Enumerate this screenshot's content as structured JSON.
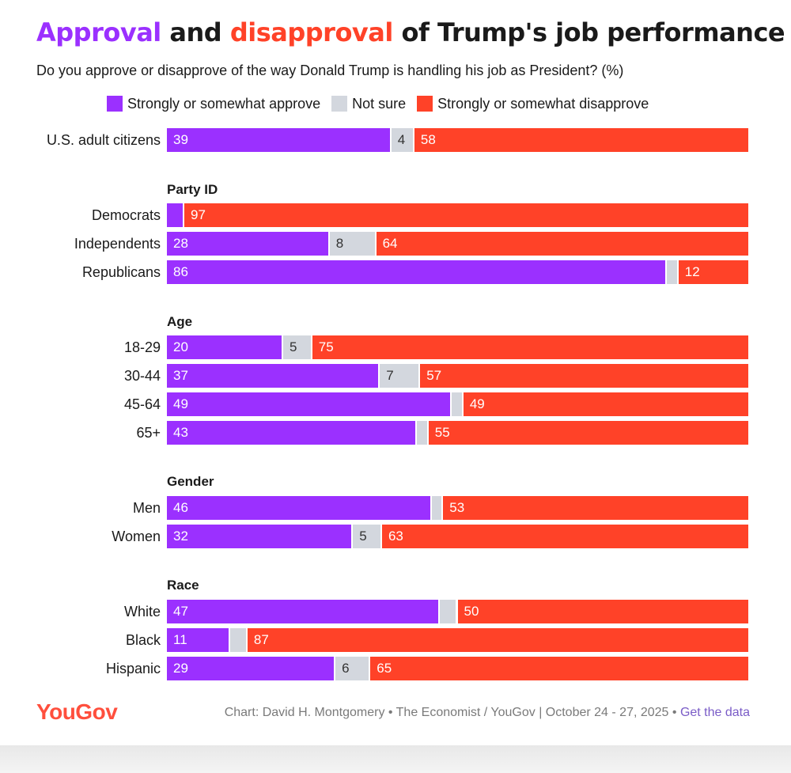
{
  "title": {
    "approval": "Approval",
    "and": " and ",
    "disapproval": "disapproval",
    "rest": " of Trump's job performance"
  },
  "subtitle": "Do you approve or disapprove of the way Donald Trump is handling his job as President? (%)",
  "colors": {
    "approve": "#9b30ff",
    "notsure": "#d3d7de",
    "disapprove": "#ff4228",
    "title_approve": "#9b30ff",
    "title_disapprove": "#ff4228",
    "logo": "#ff4f3d"
  },
  "legend": {
    "approve": "Strongly or somewhat approve",
    "notsure": "Not sure",
    "disapprove": "Strongly or somewhat disapprove"
  },
  "chart_data": {
    "type": "bar",
    "orientation": "horizontal",
    "stacked": true,
    "unit": "%",
    "series_names": [
      "Strongly or somewhat approve",
      "Not sure",
      "Strongly or somewhat disapprove"
    ],
    "groups": [
      {
        "name": "",
        "rows": [
          {
            "label": "U.S. adult citizens",
            "approve": 39,
            "notsure": 4,
            "disapprove": 58
          }
        ]
      },
      {
        "name": "Party ID",
        "rows": [
          {
            "label": "Democrats",
            "approve": 3,
            "notsure": 0,
            "disapprove": 97,
            "show_approve_label": false
          },
          {
            "label": "Independents",
            "approve": 28,
            "notsure": 8,
            "disapprove": 64
          },
          {
            "label": "Republicans",
            "approve": 86,
            "notsure": 2,
            "disapprove": 12,
            "show_notsure_label": false
          }
        ]
      },
      {
        "name": "Age",
        "rows": [
          {
            "label": "18-29",
            "approve": 20,
            "notsure": 5,
            "disapprove": 75
          },
          {
            "label": "30-44",
            "approve": 37,
            "notsure": 7,
            "disapprove": 57
          },
          {
            "label": "45-64",
            "approve": 49,
            "notsure": 2,
            "disapprove": 49,
            "show_notsure_label": false
          },
          {
            "label": "65+",
            "approve": 43,
            "notsure": 2,
            "disapprove": 55,
            "show_notsure_label": false
          }
        ]
      },
      {
        "name": "Gender",
        "rows": [
          {
            "label": "Men",
            "approve": 46,
            "notsure": 2,
            "disapprove": 53,
            "show_notsure_label": false
          },
          {
            "label": "Women",
            "approve": 32,
            "notsure": 5,
            "disapprove": 63
          }
        ]
      },
      {
        "name": "Race",
        "rows": [
          {
            "label": "White",
            "approve": 47,
            "notsure": 3,
            "disapprove": 50,
            "show_notsure_label": false
          },
          {
            "label": "Black",
            "approve": 11,
            "notsure": 3,
            "disapprove": 87,
            "show_notsure_label": false
          },
          {
            "label": "Hispanic",
            "approve": 29,
            "notsure": 6,
            "disapprove": 65
          }
        ]
      }
    ]
  },
  "footer": {
    "logo": "YouGov",
    "credit": "Chart: David H. Montgomery • The Economist / YouGov | October 24 - 27, 2025 • ",
    "link": "Get the data"
  }
}
